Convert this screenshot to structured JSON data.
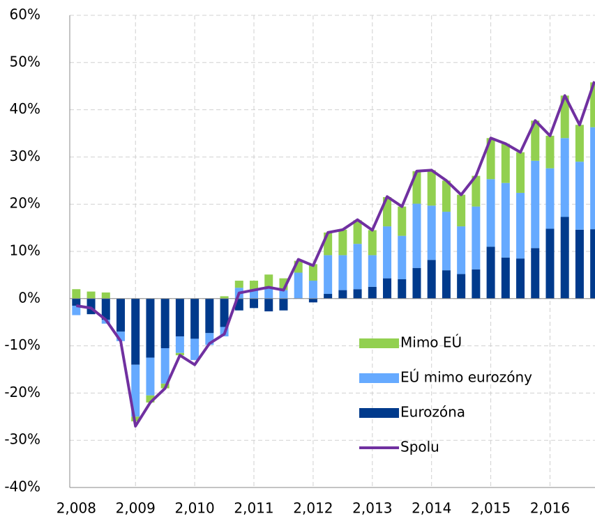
{
  "chart_data": {
    "type": "stacked-bar-line",
    "x": [
      2008,
      2008.25,
      2008.5,
      2008.75,
      2009,
      2009.25,
      2009.5,
      2009.75,
      2010,
      2010.25,
      2010.5,
      2010.75,
      2011,
      2011.25,
      2011.5,
      2011.75,
      2012,
      2012.25,
      2012.5,
      2012.75,
      2013,
      2013.25,
      2013.5,
      2013.75,
      2014,
      2014.25,
      2014.5,
      2014.75,
      2015,
      2015.25,
      2015.5,
      2015.75,
      2016,
      2016.25,
      2016.5,
      2016.75
    ],
    "series": [
      {
        "name": "Eurozóna",
        "type": "bar",
        "color": "#003a8c",
        "values": [
          -1.5,
          -3.3,
          -4.5,
          -7,
          -14,
          -12.5,
          -10.5,
          -8,
          -8.5,
          -7.3,
          -6,
          -2.5,
          -2,
          -2.7,
          -2.5,
          0,
          -0.8,
          1,
          1.8,
          2,
          2.5,
          4.3,
          4.1,
          6.5,
          8.2,
          6,
          5.2,
          6.2,
          11,
          8.7,
          8.5,
          10.7,
          14.8,
          17.3,
          14.6,
          14.7
        ]
      },
      {
        "name": "EÚ mimo eurozóny",
        "type": "bar",
        "color": "#66aaff",
        "values": [
          -2,
          0,
          -0.8,
          -2,
          -11,
          -8,
          -7.5,
          -3.5,
          -4.5,
          -2.5,
          -2,
          2.3,
          1.8,
          2.3,
          1.8,
          5.5,
          3.8,
          8.2,
          7.4,
          9.6,
          6.7,
          11,
          9.2,
          13.6,
          11.5,
          12.4,
          10.1,
          13.3,
          14.3,
          15.8,
          13.9,
          18.5,
          12.8,
          16.7,
          14.4,
          21.6
        ]
      },
      {
        "name": "Mimo EÚ",
        "type": "bar",
        "color": "#92d050",
        "values": [
          2,
          1.5,
          1.3,
          0,
          -1,
          -1.5,
          -1,
          -0.5,
          0,
          0,
          0.5,
          1.5,
          2,
          2.8,
          2.5,
          2.5,
          3.5,
          4.8,
          5.4,
          5,
          5.3,
          6.2,
          6.2,
          6.9,
          7.5,
          6.6,
          6.7,
          6.5,
          8.7,
          8.3,
          8.6,
          8.5,
          6.9,
          9,
          7.8,
          9.5
        ]
      },
      {
        "name": "Spolu",
        "type": "line",
        "color": "#7030a0",
        "values": [
          -1.5,
          -2,
          -4.5,
          -9,
          -27,
          -22,
          -19,
          -12,
          -14,
          -9.5,
          -7.5,
          1.2,
          1.8,
          2.4,
          1.8,
          8.3,
          7,
          14,
          14.6,
          16.7,
          14.5,
          21.6,
          19.5,
          27,
          27.2,
          25,
          22,
          26,
          34,
          32.8,
          31,
          37.7,
          34.5,
          43,
          36.8,
          46
        ]
      }
    ],
    "legend_order": [
      "Mimo EÚ",
      "EÚ mimo eurozóny",
      "Eurozóna",
      "Spolu"
    ],
    "xlim": [
      2007.89,
      2016.76
    ],
    "xticks": [
      {
        "value": 2008,
        "label": "2,008"
      },
      {
        "value": 2009,
        "label": "2,009"
      },
      {
        "value": 2010,
        "label": "2,010"
      },
      {
        "value": 2011,
        "label": "2,011"
      },
      {
        "value": 2012,
        "label": "2,012"
      },
      {
        "value": 2013,
        "label": "2,013"
      },
      {
        "value": 2014,
        "label": "2,014"
      },
      {
        "value": 2015,
        "label": "2,015"
      },
      {
        "value": 2016,
        "label": "2,016"
      }
    ],
    "ylim": [
      -40,
      60
    ],
    "yticks": [
      {
        "value": -40,
        "label": "-40%"
      },
      {
        "value": -30,
        "label": "-30%"
      },
      {
        "value": -20,
        "label": "-20%"
      },
      {
        "value": -10,
        "label": "-10%"
      },
      {
        "value": 0,
        "label": "0%"
      },
      {
        "value": 10,
        "label": "10%"
      },
      {
        "value": 20,
        "label": "20%"
      },
      {
        "value": 30,
        "label": "30%"
      },
      {
        "value": 40,
        "label": "40%"
      },
      {
        "value": 50,
        "label": "50%"
      },
      {
        "value": 60,
        "label": "60%"
      }
    ],
    "grid": true
  }
}
